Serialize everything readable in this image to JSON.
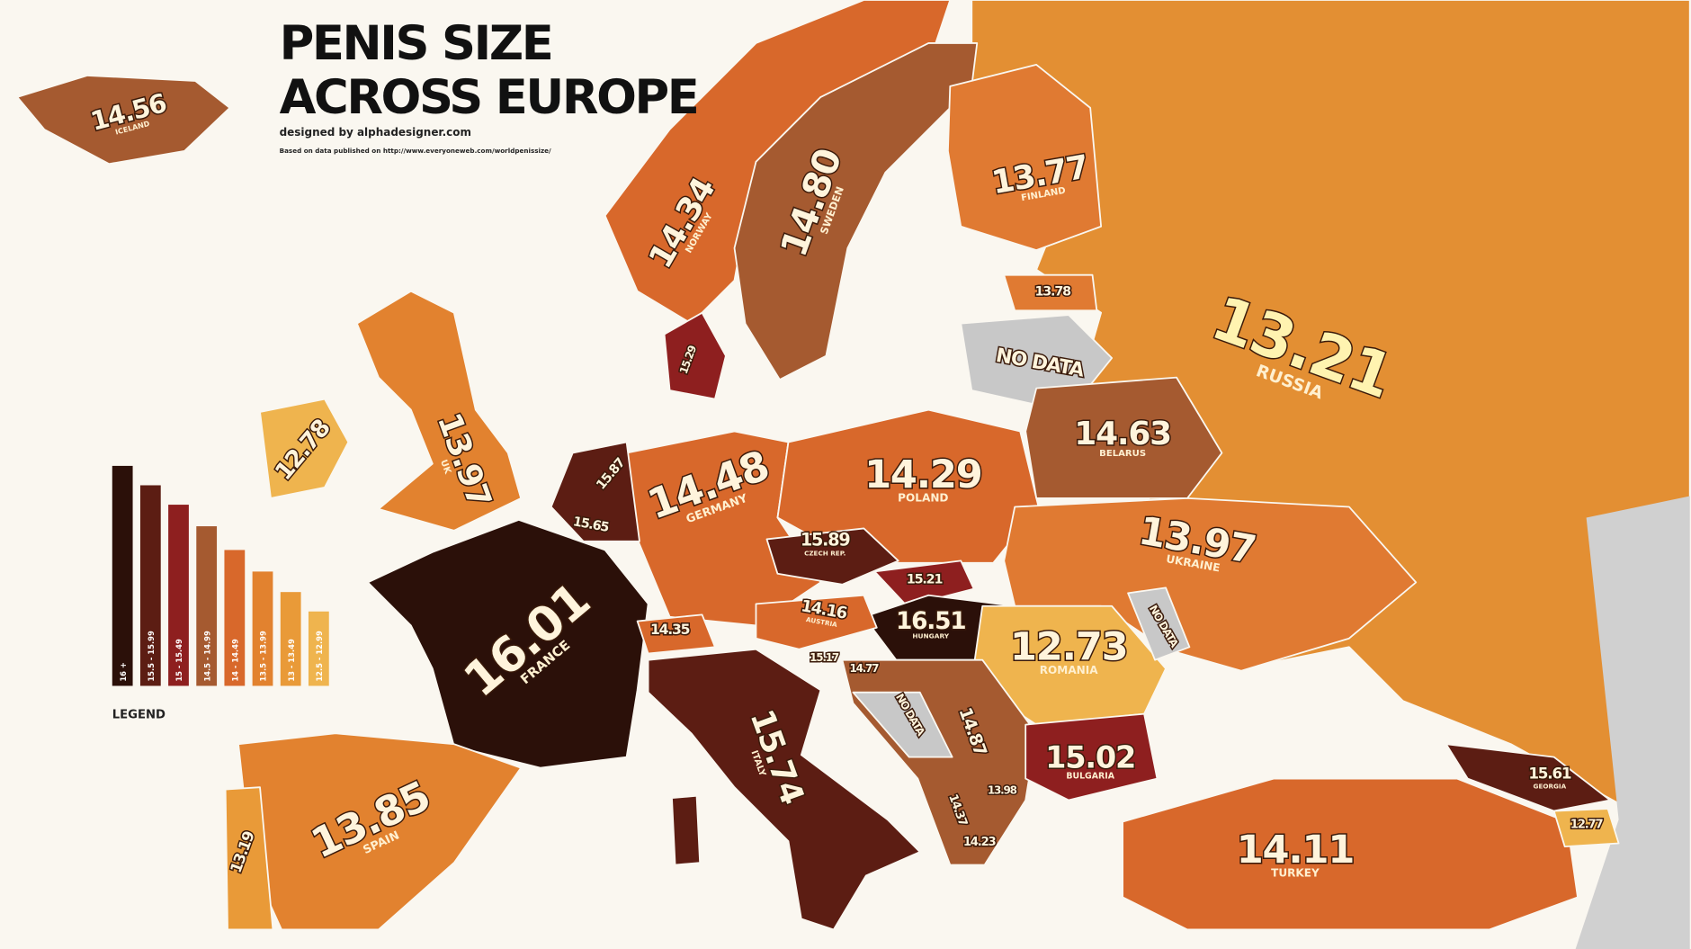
{
  "header": {
    "title_line1": "PENIS SIZE",
    "title_line2": "ACROSS EUROPE",
    "credit": "designed by alphadesigner.com",
    "source": "Based on data published on http://www.everyoneweb.com/worldpenissize/"
  },
  "legend": {
    "title": "LEGEND",
    "items": [
      {
        "label": "16 +",
        "color": "#2b1009"
      },
      {
        "label": "15.5 - 15.99",
        "color": "#5c1d13"
      },
      {
        "label": "15 - 15.49",
        "color": "#8e1f1f"
      },
      {
        "label": "14.5 - 14.99",
        "color": "#a55a30"
      },
      {
        "label": "14 - 14.49",
        "color": "#d8682b"
      },
      {
        "label": "13.5 - 13.99",
        "color": "#e2822f"
      },
      {
        "label": "13 - 13.49",
        "color": "#e99a38"
      },
      {
        "label": "12.5 - 12.99",
        "color": "#efb44e"
      }
    ]
  },
  "countries": [
    {
      "value": "14.56",
      "name": "ICELAND"
    },
    {
      "value": "14.34",
      "name": "NORWAY"
    },
    {
      "value": "14.80",
      "name": "SWEDEN"
    },
    {
      "value": "13.77",
      "name": "FINLAND"
    },
    {
      "value": "13.78"
    },
    {
      "value": "15.29"
    },
    {
      "value": "NO DATA"
    },
    {
      "value": "13.21",
      "name": "RUSSIA"
    },
    {
      "value": "12.78"
    },
    {
      "value": "13.97",
      "name": "UK"
    },
    {
      "value": "15.87"
    },
    {
      "value": "15.65"
    },
    {
      "value": "14.48",
      "name": "GERMANY"
    },
    {
      "value": "14.29",
      "name": "POLAND"
    },
    {
      "value": "14.63",
      "name": "BELARUS"
    },
    {
      "value": "13.97",
      "name": "UKRAINE"
    },
    {
      "value": "15.89",
      "name": "CZECH REP."
    },
    {
      "value": "15.21"
    },
    {
      "value": "16.51",
      "name": "HUNGARY"
    },
    {
      "value": "14.16",
      "name": "AUSTRIA"
    },
    {
      "value": "14.35"
    },
    {
      "value": "16.01",
      "name": "FRANCE"
    },
    {
      "value": "15.17"
    },
    {
      "value": "14.77"
    },
    {
      "value": "12.73",
      "name": "ROMANIA"
    },
    {
      "value": "NO DATA"
    },
    {
      "value": "NO DATA"
    },
    {
      "value": "14.87"
    },
    {
      "value": "15.02",
      "name": "BULGARIA"
    },
    {
      "value": "15.74",
      "name": "ITALY"
    },
    {
      "value": "13.85",
      "name": "SPAIN"
    },
    {
      "value": "13.19"
    },
    {
      "value": "13.98"
    },
    {
      "value": "14.37"
    },
    {
      "value": "14.23"
    },
    {
      "value": "14.11",
      "name": "TURKEY"
    },
    {
      "value": "15.61",
      "name": "GEORGIA"
    },
    {
      "value": "12.77"
    }
  ]
}
